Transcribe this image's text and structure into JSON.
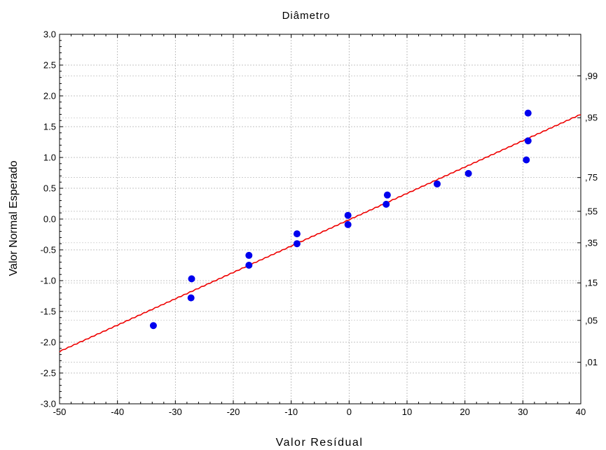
{
  "chart_data": {
    "type": "scatter",
    "title": "Diâmetro",
    "xlabel": "Valor Resídual",
    "ylabel": "Valor Normal Esperado",
    "xlim": [
      -50,
      40
    ],
    "ylim": [
      -3.0,
      3.0
    ],
    "x_ticks": [
      "-50",
      "-40",
      "-30",
      "-20",
      "-10",
      "0",
      "10",
      "20",
      "30",
      "40"
    ],
    "y_ticks": [
      "-3.0",
      "-2.5",
      "-2.0",
      "-1.5",
      "-1.0",
      "-0.5",
      "0.0",
      "0.5",
      "1.0",
      "1.5",
      "2.0",
      "2.5",
      "3.0"
    ],
    "right_ticks": [
      {
        "label": ",01",
        "z": -2.326
      },
      {
        "label": ",05",
        "z": -1.645
      },
      {
        "label": ",15",
        "z": -1.036
      },
      {
        "label": ",35",
        "z": -0.385
      },
      {
        "label": ",55",
        "z": 0.126
      },
      {
        "label": ",75",
        "z": 0.674
      },
      {
        "label": ",95",
        "z": 1.645
      },
      {
        "label": ",99",
        "z": 2.326
      }
    ],
    "grid": true,
    "points": [
      {
        "x": -33.8,
        "y": -1.73
      },
      {
        "x": -27.3,
        "y": -1.28
      },
      {
        "x": -27.2,
        "y": -0.97
      },
      {
        "x": -17.3,
        "y": -0.59
      },
      {
        "x": -17.3,
        "y": -0.75
      },
      {
        "x": -9.0,
        "y": -0.24
      },
      {
        "x": -9.0,
        "y": -0.4
      },
      {
        "x": -0.2,
        "y": 0.06
      },
      {
        "x": -0.2,
        "y": -0.09
      },
      {
        "x": 6.4,
        "y": 0.24
      },
      {
        "x": 6.6,
        "y": 0.39
      },
      {
        "x": 15.2,
        "y": 0.57
      },
      {
        "x": 20.6,
        "y": 0.74
      },
      {
        "x": 30.6,
        "y": 0.96
      },
      {
        "x": 30.9,
        "y": 1.27
      },
      {
        "x": 30.9,
        "y": 1.72
      }
    ],
    "fit_line": {
      "x": [
        -50,
        40
      ],
      "y": [
        -2.15,
        1.7
      ]
    },
    "colors": {
      "points": "#0000ee",
      "line": "#ee0000",
      "grid": "#b0b0b0",
      "axis": "#000000"
    }
  }
}
